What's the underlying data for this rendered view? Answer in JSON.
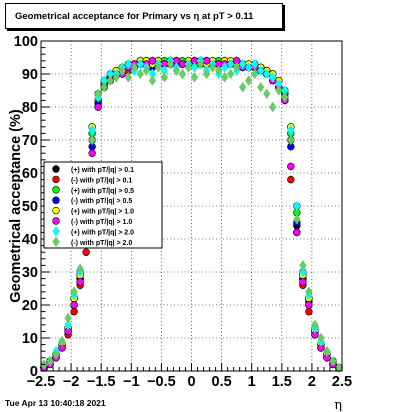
{
  "chart_data": {
    "type": "scatter",
    "title": "Geometrical acceptance for Primary vs    η at pT  > 0.11",
    "xlabel": "η",
    "ylabel": "Geometrical acceptance (%)",
    "xlim": [
      -2.5,
      2.5
    ],
    "ylim": [
      0,
      100
    ],
    "x_ticks": [
      -2.5,
      -2,
      -1.5,
      -1,
      -0.5,
      0,
      0.5,
      1,
      1.5,
      2,
      2.5
    ],
    "x_tick_labels": [
      "−2.5",
      "−2",
      "−1.5",
      "−1",
      "−0.5",
      "0",
      "0.5",
      "1",
      "1.5",
      "2",
      "2.5"
    ],
    "y_ticks": [
      0,
      10,
      20,
      30,
      40,
      50,
      60,
      70,
      80,
      90,
      100
    ],
    "y_tick_labels": [
      "0",
      "10",
      "20",
      "30",
      "40",
      "50",
      "60",
      "70",
      "80",
      "90",
      "100"
    ],
    "grid": true,
    "legend_position": "left-middle",
    "timestamp": "Tue Apr 13 10:40:18 2021",
    "eta_bins": [
      -2.45,
      -2.35,
      -2.25,
      -2.15,
      -2.05,
      -1.95,
      -1.85,
      -1.75,
      -1.65,
      -1.55,
      -1.45,
      -1.35,
      -1.25,
      -1.15,
      -1.05,
      -0.95,
      -0.85,
      -0.75,
      -0.65,
      -0.55,
      -0.45,
      -0.35,
      -0.25,
      -0.15,
      -0.05,
      0.05,
      0.15,
      0.25,
      0.35,
      0.45,
      0.55,
      0.65,
      0.75,
      0.85,
      0.95,
      1.05,
      1.15,
      1.25,
      1.35,
      1.45,
      1.55,
      1.65,
      1.75,
      1.85,
      1.95,
      2.05,
      2.15,
      2.25,
      2.35,
      2.45
    ],
    "series": [
      {
        "name": "(+) with pT/|q| > 0.1",
        "color": "#000000",
        "marker": "circle",
        "values": [
          1,
          3,
          5,
          8,
          13,
          22,
          28,
          48,
          70,
          82,
          87,
          89,
          90,
          91,
          92,
          93,
          93,
          93,
          93,
          94,
          93,
          93,
          94,
          93,
          93,
          93,
          93,
          94,
          93,
          93,
          94,
          93,
          93,
          93,
          93,
          92,
          92,
          91,
          90,
          88,
          84,
          70,
          44,
          28,
          21,
          12,
          8,
          5,
          3,
          1
        ]
      },
      {
        "name": "(-) with pT/|q| > 0.1",
        "color": "#ff0000",
        "marker": "circle",
        "values": [
          1,
          2,
          4,
          7,
          11,
          18,
          26,
          36,
          62,
          80,
          86,
          88,
          90,
          91,
          91,
          92,
          93,
          93,
          93,
          93,
          93,
          94,
          93,
          93,
          93,
          93,
          94,
          93,
          93,
          93,
          93,
          93,
          93,
          92,
          92,
          92,
          91,
          90,
          88,
          86,
          82,
          58,
          42,
          26,
          18,
          11,
          7,
          4,
          2,
          1
        ]
      },
      {
        "name": "(+) with pT/|q| > 0.5",
        "color": "#00ff00",
        "marker": "circle",
        "values": [
          1,
          3,
          5,
          8,
          13,
          22,
          30,
          50,
          72,
          82,
          87,
          89,
          91,
          91,
          92,
          93,
          93,
          94,
          94,
          93,
          94,
          93,
          94,
          94,
          93,
          93,
          94,
          94,
          93,
          94,
          93,
          93,
          94,
          93,
          93,
          93,
          92,
          91,
          90,
          88,
          84,
          72,
          48,
          30,
          22,
          13,
          8,
          5,
          3,
          1
        ]
      },
      {
        "name": "(-) with pT/|q| > 0.5",
        "color": "#0000ff",
        "marker": "circle",
        "values": [
          1,
          3,
          5,
          8,
          12,
          20,
          28,
          45,
          68,
          81,
          86,
          89,
          90,
          91,
          93,
          93,
          94,
          93,
          92,
          94,
          93,
          94,
          93,
          93,
          94,
          94,
          93,
          93,
          94,
          93,
          94,
          93,
          93,
          93,
          92,
          93,
          92,
          91,
          90,
          88,
          83,
          68,
          45,
          28,
          20,
          12,
          8,
          5,
          3,
          1
        ]
      },
      {
        "name": "(+) with pT/|q| > 1.0",
        "color": "#ffff00",
        "marker": "circle",
        "values": [
          1,
          2,
          5,
          8,
          13,
          22,
          29,
          52,
          74,
          84,
          88,
          90,
          91,
          92,
          92,
          93,
          94,
          94,
          93,
          94,
          93,
          94,
          94,
          93,
          94,
          94,
          93,
          93,
          94,
          93,
          94,
          94,
          93,
          93,
          93,
          92,
          92,
          91,
          90,
          88,
          85,
          74,
          50,
          29,
          22,
          12,
          8,
          5,
          2,
          1
        ]
      },
      {
        "name": "(-) with pT/|q| > 1.0",
        "color": "#ff00ff",
        "marker": "circle",
        "values": [
          1,
          2,
          4,
          7,
          12,
          20,
          27,
          40,
          66,
          80,
          86,
          88,
          90,
          90,
          92,
          93,
          93,
          93,
          94,
          93,
          93,
          93,
          94,
          93,
          93,
          94,
          93,
          94,
          93,
          93,
          93,
          93,
          94,
          92,
          92,
          92,
          91,
          90,
          88,
          86,
          82,
          62,
          42,
          27,
          20,
          11,
          7,
          4,
          2,
          1
        ]
      },
      {
        "name": "(+) with pT/|q| > 2.0",
        "color": "#00ffff",
        "marker": "diamond",
        "values": [
          2,
          3,
          6,
          9,
          14,
          23,
          30,
          52,
          73,
          83,
          88,
          90,
          90,
          92,
          93,
          91,
          93,
          92,
          90,
          93,
          91,
          94,
          92,
          90,
          93,
          92,
          94,
          91,
          93,
          90,
          92,
          93,
          91,
          93,
          92,
          93,
          91,
          90,
          89,
          87,
          85,
          73,
          50,
          30,
          23,
          13,
          9,
          6,
          3,
          1
        ]
      },
      {
        "name": "(-) with pT/|q| > 2.0",
        "color": "#66cc66",
        "marker": "diamond",
        "values": [
          2,
          3,
          5,
          9,
          16,
          24,
          31,
          54,
          70,
          84,
          86,
          88,
          89,
          91,
          89,
          92,
          90,
          91,
          88,
          92,
          89,
          93,
          91,
          90,
          92,
          89,
          93,
          90,
          92,
          91,
          89,
          90,
          92,
          86,
          88,
          90,
          86,
          84,
          80,
          85,
          83,
          70,
          46,
          32,
          24,
          14,
          10,
          6,
          3,
          1
        ]
      }
    ]
  }
}
